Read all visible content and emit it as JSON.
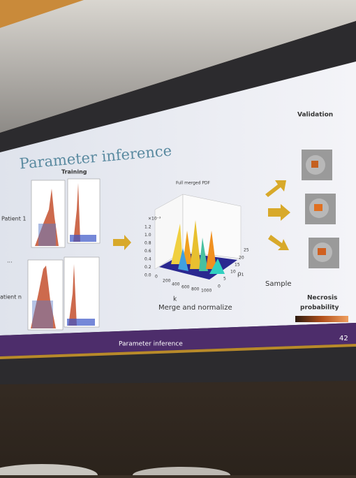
{
  "slide": {
    "title": "Parameter inference",
    "training_label": "Training",
    "patients": [
      "Patient 1",
      "...",
      "atient n"
    ],
    "pdf_title": "Full merged PDF",
    "z_exponent": "×10⁻³",
    "z_ticks": [
      "1.2",
      "1.0",
      "0.8",
      "0.6",
      "0.4",
      "0.2",
      "0.0"
    ],
    "x_ticks": [
      "0",
      "200",
      "400",
      "600",
      "800",
      "1000"
    ],
    "x_label": "k",
    "y_ticks": [
      "0",
      "5",
      "10",
      "15",
      "20",
      "25"
    ],
    "y_label": "ρ₁",
    "merge_caption": "Merge and normalize",
    "sample_label": "Sample",
    "validation_label": "Validation",
    "necrosis_label": [
      "Necrosis",
      "probability"
    ],
    "footer": "Parameter inference",
    "page_number": "42"
  }
}
